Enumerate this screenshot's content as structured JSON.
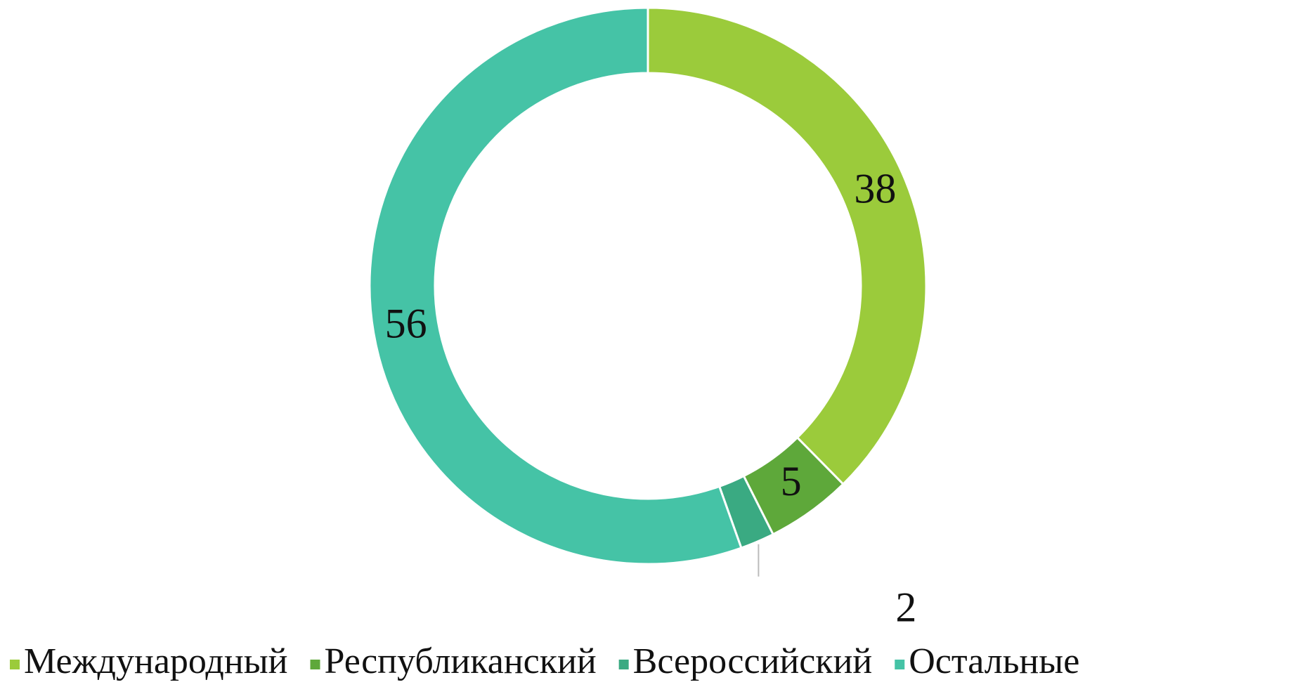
{
  "chart_data": {
    "type": "donut",
    "categories": [
      "Международный",
      "Республиканский",
      "Всероссийский",
      "Остальные"
    ],
    "values": [
      38,
      5,
      2,
      56
    ],
    "colors": [
      "#9bcb3b",
      "#5ea83a",
      "#3aaa82",
      "#45c3a6"
    ],
    "legend": "bottom"
  }
}
